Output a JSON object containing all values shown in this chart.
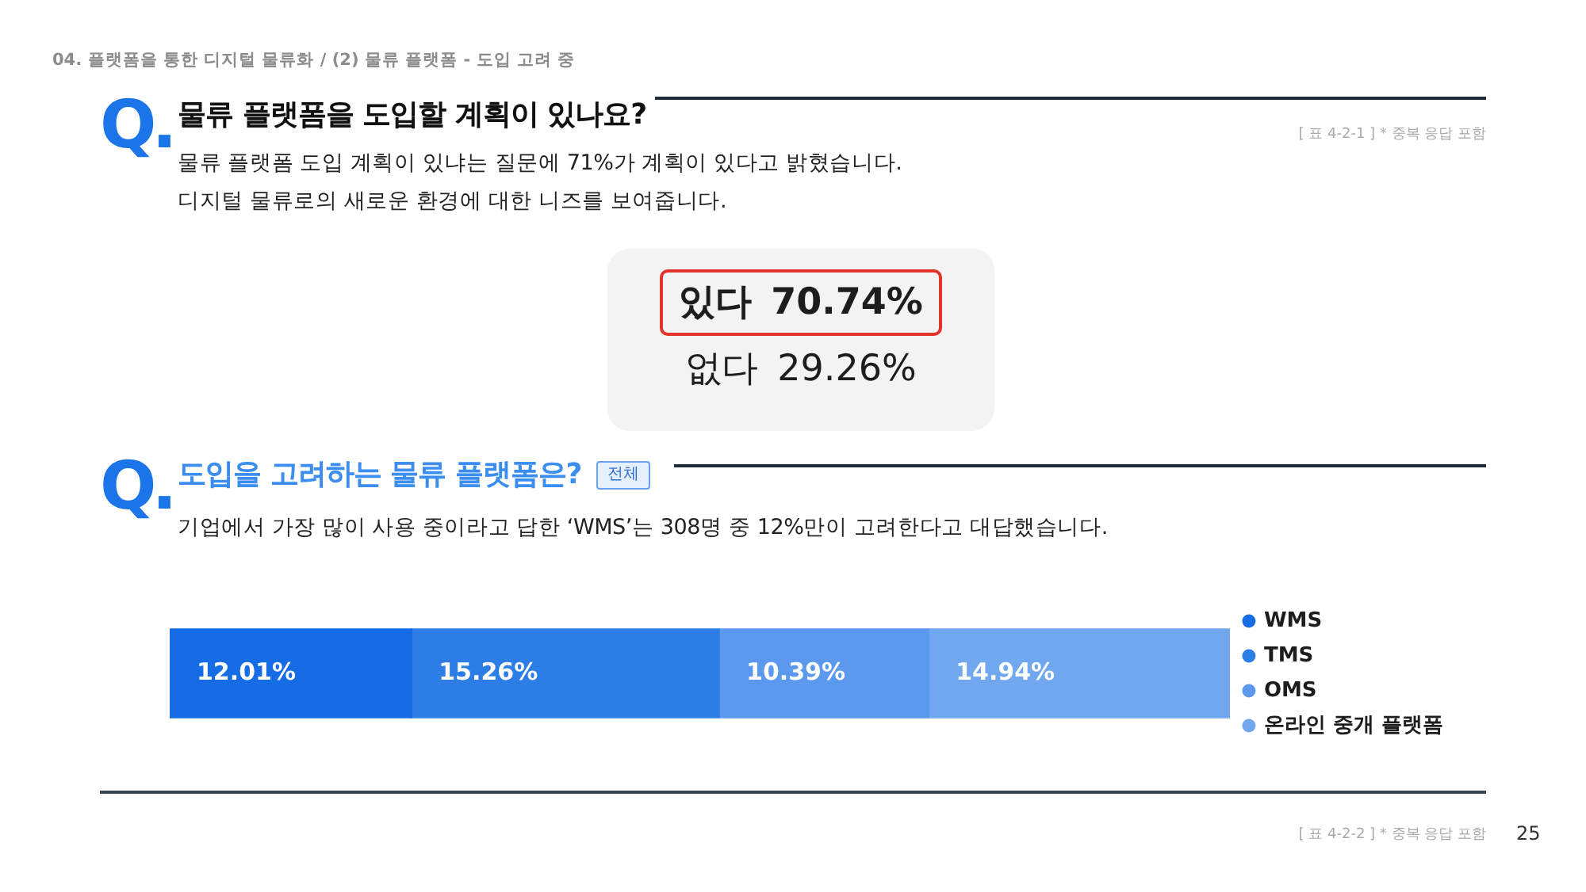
{
  "chart_data": [
    {
      "type": "other",
      "title": "물류 플랫폼을 도입할 계획이 있나요?",
      "subtitle": "물류 플랫폼 도입 계획이 있냐는 질문에 71%가 계획이 있다고 밝혔습니다.\n디지털 물류로의 새로운 환경에 대한 니즈를 보여줍니다.",
      "categories": [
        "있다",
        "없다"
      ],
      "values": [
        70.74,
        29.26
      ],
      "value_labels": [
        "70.74%",
        "29.26%"
      ],
      "annotations": [
        "04. 플랫폼을 통한 디지털 물류화 / (2) 물류 플랫폼 - 도입 고려 중",
        "Q.",
        "[ 표 4-2-1 ] * 중복 응답 포함"
      ]
    },
    {
      "type": "bar",
      "orientation": "horizontal",
      "stacked": true,
      "title": "도입을 고려하는 물류 플랫폼은?",
      "subtitle": "기업에서 가장 많이 사용 중이라고 답한 ‘WMS’는 308명 중 12%만이 고려한다고 대답했습니다.",
      "categories": [
        null
      ],
      "series": [
        {
          "name": "WMS",
          "color": "#156ce5",
          "values": [
            12.01
          ],
          "value_labels": [
            "12.01%"
          ]
        },
        {
          "name": "TMS",
          "color": "#2c7de6",
          "values": [
            15.26
          ],
          "value_labels": [
            "15.26%"
          ]
        },
        {
          "name": "OMS",
          "color": "#5a99ee",
          "values": [
            10.39
          ],
          "value_labels": [
            "10.39%"
          ]
        },
        {
          "name": "온라인 중개 플랫폼",
          "color": "#71a7ef",
          "values": [
            14.94
          ],
          "value_labels": [
            "14.94%"
          ]
        }
      ],
      "xlim": [
        0,
        52.6
      ],
      "tick_labels": false,
      "legend": "right",
      "annotations": [
        "Q.",
        "전체",
        "[ 표 4-2-2 ] * 중복 응답 포함",
        "25"
      ]
    }
  ]
}
